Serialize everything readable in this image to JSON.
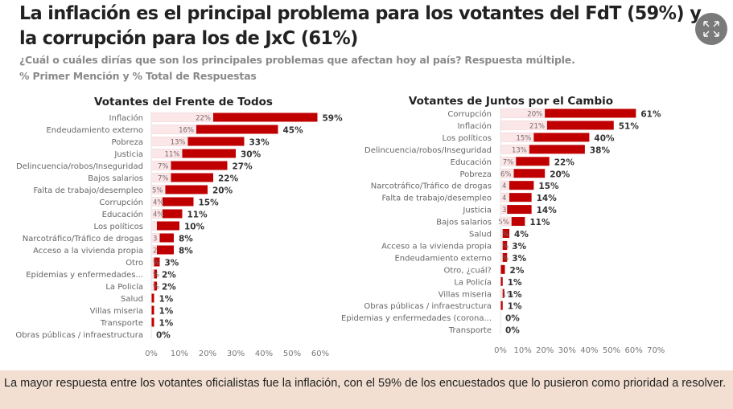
{
  "header": {
    "title": "La inflación es el principal problema para los votantes del FdT (59%) y la corrupción para los de JxC (61%)",
    "subtitle1": "¿Cuál o cuáles dirías que son los principales problemas que afectan hoy al país? Respuesta múltiple.",
    "subtitle2": "% Primer Mención y % Total de Respuestas"
  },
  "expand_button": {
    "icon": "expand-arrows-icon"
  },
  "colors": {
    "first_mention": "#fbe6e8",
    "total": "#c00000",
    "text": "#333333",
    "label": "#666666"
  },
  "chart_data": [
    {
      "type": "bar",
      "orientation": "horizontal",
      "title": "Votantes del Frente de Todos",
      "xlim": [
        0,
        60
      ],
      "xticks": [
        "0%",
        "10%",
        "20%",
        "30%",
        "40%",
        "50%",
        "60%"
      ],
      "categories": [
        "Inflación",
        "Endeudamiento externo",
        "Pobreza",
        "Justicia",
        "Delincuencia/robos/Inseguridad",
        "Bajos salarios",
        "Falta de trabajo/desempleo",
        "Corrupción",
        "Educación",
        "Los políticos",
        "Narcotráfico/Tráfico de drogas",
        "Acceso a la vivienda propia",
        "Otro",
        "Epidemias y enfermedades...",
        "La Policía",
        "Salud",
        "Villas miseria",
        "Transporte",
        "Obras públicas / infraestructura"
      ],
      "series": [
        {
          "name": "% Primer Mención",
          "values": [
            22,
            16,
            13,
            11,
            7,
            7,
            5,
            4,
            4,
            2,
            3,
            2,
            1,
            1,
            1,
            0,
            0,
            0,
            0
          ],
          "labels": [
            "22%",
            "16%",
            "13%",
            "11%",
            "7%",
            "7%",
            "5%",
            "4%",
            "4%",
            "",
            "3",
            "2",
            "%",
            "%",
            "%",
            "",
            "",
            "",
            ""
          ]
        },
        {
          "name": "% Total de Respuestas",
          "values": [
            59,
            45,
            33,
            30,
            27,
            22,
            20,
            15,
            11,
            10,
            8,
            8,
            3,
            2,
            2,
            1,
            1,
            1,
            0
          ],
          "labels": [
            "59%",
            "45%",
            "33%",
            "30%",
            "27%",
            "22%",
            "20%",
            "15%",
            "11%",
            "10%",
            "8%",
            "8%",
            "3%",
            "2%",
            "2%",
            "1%",
            "1%",
            "1%",
            "0%"
          ]
        }
      ]
    },
    {
      "type": "bar",
      "orientation": "horizontal",
      "title": "Votantes de Juntos por el Cambio",
      "xlim": [
        0,
        70
      ],
      "xticks": [
        "0%",
        "10%",
        "20%",
        "30%",
        "40%",
        "50%",
        "60%",
        "70%"
      ],
      "categories": [
        "Corrupción",
        "Inflación",
        "Los políticos",
        "Delincuencia/robos/Inseguridad",
        "Educación",
        "Pobreza",
        "Narcotráfico/Tráfico de drogas",
        "Falta de trabajo/desempleo",
        "Justicia",
        "Bajos salarios",
        "Salud",
        "Acceso a la vivienda propia",
        "Endeudamiento externo",
        "Otro, ¿cuál?",
        "La Policía",
        "Villas miseria",
        "Obras públicas / infraestructura",
        "Epidemias y enfermedades (corona...",
        "Transporte"
      ],
      "series": [
        {
          "name": "% Primer Mención",
          "values": [
            20,
            21,
            15,
            13,
            7,
            6,
            4,
            4,
            3,
            5,
            1,
            1,
            1,
            0,
            0,
            1,
            0,
            0,
            0
          ],
          "labels": [
            "20%",
            "21%",
            "15%",
            "13%",
            "7%",
            "6%",
            "4",
            "4",
            "3",
            "5%",
            "%",
            "%",
            "%",
            "",
            "",
            "1%",
            "",
            "",
            ""
          ]
        },
        {
          "name": "% Total de Respuestas",
          "values": [
            61,
            51,
            40,
            38,
            22,
            20,
            15,
            14,
            14,
            11,
            4,
            3,
            3,
            2,
            1,
            1,
            1,
            0,
            0
          ],
          "labels": [
            "61%",
            "51%",
            "40%",
            "38%",
            "22%",
            "20%",
            "15%",
            "14%",
            "14%",
            "11%",
            "4%",
            "3%",
            "3%",
            "2%",
            "1%",
            "1%",
            "1%",
            "0%",
            "0%"
          ]
        }
      ]
    }
  ],
  "footer": {
    "text": "La mayor respuesta entre los votantes oficialistas fue la inflación, con el 59% de los encuestados que lo pusieron como prioridad a resolver."
  }
}
